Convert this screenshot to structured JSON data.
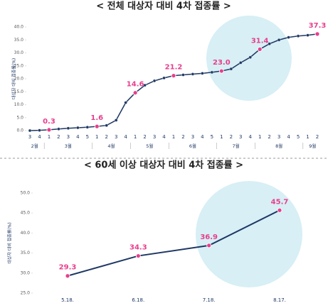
{
  "chart_data": [
    {
      "type": "line",
      "title": "< 전체 대상자 대비 4차 접종률 >",
      "ylabel": "대상자 대비 접종률(%)",
      "categories": [
        "3",
        "4",
        "1",
        "2",
        "3",
        "4",
        "5",
        "1",
        "2",
        "3",
        "4",
        "1",
        "2",
        "3",
        "4",
        "1",
        "2",
        "3",
        "4",
        "5",
        "1",
        "2",
        "3",
        "4",
        "1",
        "2",
        "3",
        "4",
        "5",
        "1",
        "2"
      ],
      "month_groups": [
        {
          "name": "2월",
          "weeks": 2
        },
        {
          "name": "3월",
          "weeks": 5
        },
        {
          "name": "4월",
          "weeks": 4
        },
        {
          "name": "5월",
          "weeks": 4
        },
        {
          "name": "6월",
          "weeks": 5
        },
        {
          "name": "7월",
          "weeks": 4
        },
        {
          "name": "8월",
          "weeks": 5
        },
        {
          "name": "9월",
          "weeks": 2
        }
      ],
      "values": [
        0.0,
        0.1,
        0.3,
        0.6,
        0.9,
        1.1,
        1.3,
        1.6,
        2.0,
        4.0,
        10.8,
        14.6,
        17.5,
        19.2,
        20.3,
        21.2,
        21.5,
        21.8,
        22.1,
        22.5,
        23.0,
        23.8,
        26.2,
        28.3,
        31.4,
        33.5,
        35.0,
        36.0,
        36.5,
        36.8,
        37.3
      ],
      "value_labels": [
        null,
        null,
        "0.3",
        null,
        null,
        null,
        null,
        "1.6",
        null,
        null,
        null,
        "14.6",
        null,
        null,
        null,
        "21.2",
        null,
        null,
        null,
        null,
        "23.0",
        null,
        null,
        null,
        "31.4",
        null,
        null,
        null,
        null,
        null,
        "37.3"
      ],
      "color": "#1f3864",
      "marker_color": "#1f3864",
      "highlight_color": "#e83e8c",
      "ylim": [
        0,
        40
      ],
      "yticks": [
        {
          "value": 0,
          "label": "0.0"
        },
        {
          "value": 5,
          "label": "5.0"
        },
        {
          "value": 10,
          "label": "10.0"
        },
        {
          "value": 15,
          "label": "15.0"
        },
        {
          "value": 20,
          "label": "20.0"
        },
        {
          "value": 25,
          "label": "25.0"
        },
        {
          "value": 30,
          "label": "30.0"
        },
        {
          "value": 35,
          "label": "35.0"
        },
        {
          "value": 40,
          "label": "40.0"
        }
      ]
    },
    {
      "type": "line",
      "title": "< 60세 이상 대상자 대비 4차 접종률 >",
      "ylabel": "대상자 대비 접종률(%)",
      "categories": [
        "5.18.",
        "6.18.",
        "7.18.",
        "8.17."
      ],
      "values": [
        29.3,
        34.3,
        36.9,
        45.7
      ],
      "color": "#1f3864",
      "marker_color": "#e83e8c",
      "highlight_color": "#e83e8c",
      "ylim": [
        25,
        50
      ],
      "yticks": [
        {
          "value": 25,
          "label": "25.0"
        },
        {
          "value": 30,
          "label": "30.0"
        },
        {
          "value": 35,
          "label": "35.0"
        },
        {
          "value": 40,
          "label": "40.0"
        },
        {
          "value": 45,
          "label": "45.0"
        },
        {
          "value": 50,
          "label": "50.0"
        }
      ]
    }
  ]
}
